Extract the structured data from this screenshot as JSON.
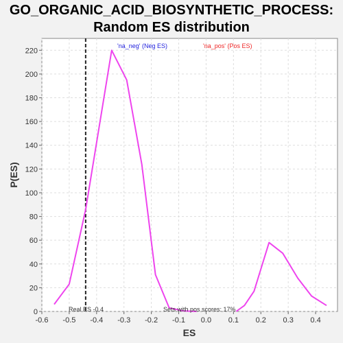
{
  "chart_data": {
    "type": "line",
    "title": "GO_ORGANIC_ACID_BIOSYNTHETIC_PROCESS:",
    "subtitle": "Random ES distribution",
    "xlabel": "ES",
    "ylabel": "P(ES)",
    "xlim": [
      -0.6,
      0.48
    ],
    "ylim": [
      0,
      230
    ],
    "x_ticks": [
      "-0.6",
      "-0.5",
      "-0.4",
      "-0.3",
      "-0.2",
      "-0.1",
      "0.0",
      "0.1",
      "0.2",
      "0.3",
      "0.4"
    ],
    "y_ticks": [
      "0",
      "20",
      "40",
      "60",
      "80",
      "100",
      "120",
      "140",
      "160",
      "180",
      "200",
      "220"
    ],
    "grid": true,
    "series": [
      {
        "name": "'na_neg' (Neg ES)",
        "color": "#ee44ee",
        "x": [
          -0.555,
          -0.5,
          -0.44,
          -0.345,
          -0.29,
          -0.235,
          -0.185,
          -0.135,
          -0.085,
          -0.035
        ],
        "y": [
          6,
          23,
          86,
          220,
          195,
          124,
          31,
          3,
          0.5,
          0
        ]
      },
      {
        "name": "'na_pos' (Pos ES)",
        "color": "#ee44ee",
        "x": [
          0.11,
          0.14,
          0.175,
          0.23,
          0.28,
          0.335,
          0.385,
          0.44
        ],
        "y": [
          0,
          5,
          17,
          58,
          49,
          28,
          13,
          5
        ]
      }
    ],
    "legend": [
      {
        "label": "'na_neg' (Neg ES)",
        "color": "#2222dd"
      },
      {
        "label": "'na_pos' (Pos ES)",
        "color": "#ee2222"
      }
    ],
    "vline": {
      "x": -0.44,
      "label": "Real ES -0.4"
    },
    "annotation": "Sets with pos scores: 17%"
  }
}
